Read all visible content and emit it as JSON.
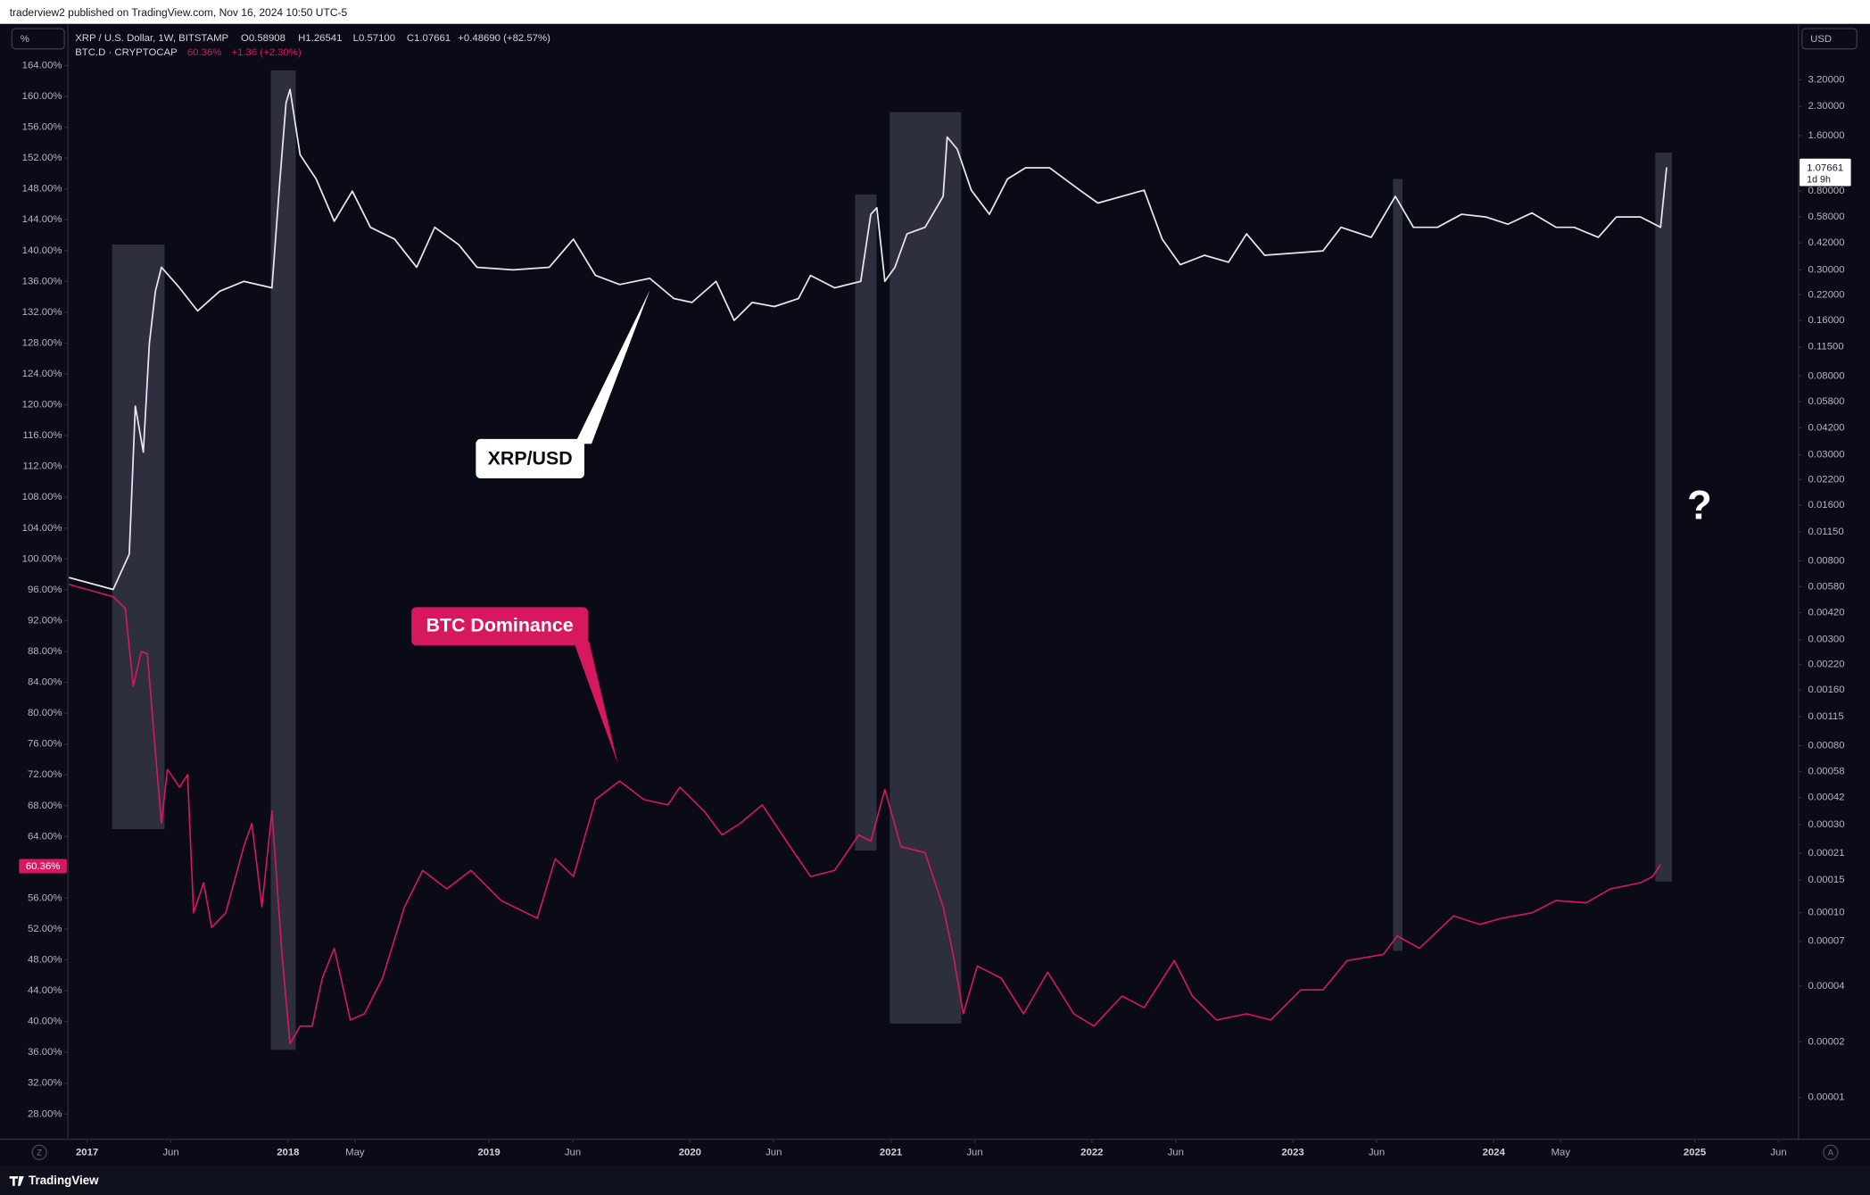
{
  "header": {
    "published": "traderview2 published on TradingView.com, Nov 16, 2024 10:50 UTC-5"
  },
  "chart_data": {
    "type": "line",
    "left_axis_unit": "%",
    "right_axis_unit": "USD",
    "legend": {
      "xrp": {
        "symbol": "XRP / U.S. Dollar, 1W, BITSTAMP",
        "open": "O0.58908",
        "high": "H1.26541",
        "low": "L0.57100",
        "close": "C1.07661",
        "change": "+0.48690 (+82.57%)"
      },
      "btc": {
        "symbol": "BTC.D · CRYPTOCAP",
        "change": "+1.36 (+2.30%)"
      }
    },
    "annotation": "?",
    "grid": false,
    "xlim": [
      2016.905,
      2025.516
    ],
    "xticks": [
      {
        "value": 2017,
        "label": "2017"
      },
      {
        "value": 2017.417,
        "label": "Jun"
      },
      {
        "value": 2018,
        "label": "2018"
      },
      {
        "value": 2018.333,
        "label": "May"
      },
      {
        "value": 2019,
        "label": "2019"
      },
      {
        "value": 2019.417,
        "label": "Jun"
      },
      {
        "value": 2020,
        "label": "2020"
      },
      {
        "value": 2020.417,
        "label": "Jun"
      },
      {
        "value": 2021,
        "label": "2021"
      },
      {
        "value": 2021.417,
        "label": "Jun"
      },
      {
        "value": 2022,
        "label": "2022"
      },
      {
        "value": 2022.417,
        "label": "Jun"
      },
      {
        "value": 2023,
        "label": "2023"
      },
      {
        "value": 2023.417,
        "label": "Jun"
      },
      {
        "value": 2024,
        "label": "2024"
      },
      {
        "value": 2024.333,
        "label": "May"
      },
      {
        "value": 2025,
        "label": "2025"
      },
      {
        "value": 2025.417,
        "label": "Jun"
      }
    ],
    "ylim": [
      25.5,
      169.1
    ],
    "yticks": [
      {
        "value": 28,
        "label": "28.00%"
      },
      {
        "value": 32,
        "label": "32.00%"
      },
      {
        "value": 36,
        "label": "36.00%"
      },
      {
        "value": 40,
        "label": "40.00%"
      },
      {
        "value": 44,
        "label": "44.00%"
      },
      {
        "value": 48,
        "label": "48.00%"
      },
      {
        "value": 52,
        "label": "52.00%"
      },
      {
        "value": 56,
        "label": "56.00%"
      },
      {
        "value": 64,
        "label": "64.00%"
      },
      {
        "value": 68,
        "label": "68.00%"
      },
      {
        "value": 72,
        "label": "72.00%"
      },
      {
        "value": 76,
        "label": "76.00%"
      },
      {
        "value": 80,
        "label": "80.00%"
      },
      {
        "value": 84,
        "label": "84.00%"
      },
      {
        "value": 88,
        "label": "88.00%"
      },
      {
        "value": 92,
        "label": "92.00%"
      },
      {
        "value": 96,
        "label": "96.00%"
      },
      {
        "value": 100,
        "label": "100.00%"
      },
      {
        "value": 104,
        "label": "104.00%"
      },
      {
        "value": 108,
        "label": "108.00%"
      },
      {
        "value": 112,
        "label": "112.00%"
      },
      {
        "value": 116,
        "label": "116.00%"
      },
      {
        "value": 120,
        "label": "120.00%"
      },
      {
        "value": 124,
        "label": "124.00%"
      },
      {
        "value": 128,
        "label": "128.00%"
      },
      {
        "value": 132,
        "label": "132.00%"
      },
      {
        "value": 136,
        "label": "136.00%"
      },
      {
        "value": 140,
        "label": "140.00%"
      },
      {
        "value": 144,
        "label": "144.00%"
      },
      {
        "value": 148,
        "label": "148.00%"
      },
      {
        "value": 152,
        "label": "152.00%"
      },
      {
        "value": 156,
        "label": "156.00%"
      },
      {
        "value": 160,
        "label": "160.00%"
      },
      {
        "value": 164,
        "label": "164.00%"
      }
    ],
    "y2_log": true,
    "y2lim": [
      6.4e-06,
      6.24
    ],
    "y2ticks": [
      {
        "value": 3.2,
        "label": "3.20000"
      },
      {
        "value": 2.3,
        "label": "2.30000"
      },
      {
        "value": 1.6,
        "label": "1.60000"
      },
      {
        "value": 0.8,
        "label": "0.80000"
      },
      {
        "value": 0.58,
        "label": "0.58000"
      },
      {
        "value": 0.42,
        "label": "0.42000"
      },
      {
        "value": 0.3,
        "label": "0.30000"
      },
      {
        "value": 0.22,
        "label": "0.22000"
      },
      {
        "value": 0.16,
        "label": "0.16000"
      },
      {
        "value": 0.115,
        "label": "0.11500"
      },
      {
        "value": 0.08,
        "label": "0.08000"
      },
      {
        "value": 0.058,
        "label": "0.05800"
      },
      {
        "value": 0.042,
        "label": "0.04200"
      },
      {
        "value": 0.03,
        "label": "0.03000"
      },
      {
        "value": 0.022,
        "label": "0.02200"
      },
      {
        "value": 0.016,
        "label": "0.01600"
      },
      {
        "value": 0.0115,
        "label": "0.01150"
      },
      {
        "value": 0.008,
        "label": "0.00800"
      },
      {
        "value": 0.0058,
        "label": "0.00580"
      },
      {
        "value": 0.0042,
        "label": "0.00420"
      },
      {
        "value": 0.003,
        "label": "0.00300"
      },
      {
        "value": 0.0022,
        "label": "0.00220"
      },
      {
        "value": 0.0016,
        "label": "0.00160"
      },
      {
        "value": 0.00115,
        "label": "0.00115"
      },
      {
        "value": 0.0008,
        "label": "0.00080"
      },
      {
        "value": 0.00058,
        "label": "0.00058"
      },
      {
        "value": 0.00042,
        "label": "0.00042"
      },
      {
        "value": 0.0003,
        "label": "0.00030"
      },
      {
        "value": 0.00021,
        "label": "0.00021"
      },
      {
        "value": 0.00015,
        "label": "0.00015"
      },
      {
        "value": 0.0001,
        "label": "0.00010"
      },
      {
        "value": 7e-05,
        "label": "0.00007"
      },
      {
        "value": 4e-05,
        "label": "0.00004"
      },
      {
        "value": 2e-05,
        "label": "0.00002"
      },
      {
        "value": 1e-05,
        "label": "0.00001"
      }
    ],
    "series": [
      {
        "name": "BTC Dominance",
        "color": "#d6195f",
        "axis": "y",
        "last_label": "60.36%",
        "x": [
          2016.91,
          2017.13,
          2017.19,
          2017.23,
          2017.27,
          2017.3,
          2017.34,
          2017.37,
          2017.4,
          2017.46,
          2017.5,
          2017.53,
          2017.58,
          2017.62,
          2017.69,
          2017.78,
          2017.82,
          2017.87,
          2017.92,
          2017.97,
          2018.01,
          2018.06,
          2018.12,
          2018.17,
          2018.23,
          2018.31,
          2018.38,
          2018.47,
          2018.58,
          2018.67,
          2018.79,
          2018.91,
          2019.06,
          2019.24,
          2019.33,
          2019.42,
          2019.53,
          2019.65,
          2019.77,
          2019.89,
          2019.95,
          2020.07,
          2020.16,
          2020.25,
          2020.36,
          2020.48,
          2020.6,
          2020.72,
          2020.84,
          2020.9,
          2020.97,
          2021.05,
          2021.17,
          2021.26,
          2021.31,
          2021.36,
          2021.43,
          2021.55,
          2021.66,
          2021.78,
          2021.91,
          2022.01,
          2022.15,
          2022.26,
          2022.41,
          2022.5,
          2022.62,
          2022.77,
          2022.89,
          2023.04,
          2023.15,
          2023.27,
          2023.45,
          2023.52,
          2023.63,
          2023.8,
          2023.93,
          2024.04,
          2024.19,
          2024.31,
          2024.46,
          2024.58,
          2024.73,
          2024.79,
          2024.83
        ],
        "values": [
          96.7,
          95.1,
          93.6,
          83.5,
          88,
          87.7,
          75,
          65.7,
          72.7,
          70.4,
          72,
          54.1,
          58,
          52.2,
          54.1,
          62.7,
          65.7,
          54.9,
          67.3,
          48.7,
          37.1,
          39.4,
          39.4,
          45.6,
          49.5,
          40.2,
          41,
          45.6,
          54.9,
          59.6,
          57.2,
          59.6,
          55.7,
          53.4,
          61.1,
          58.8,
          68.8,
          71.2,
          68.8,
          68.1,
          70.4,
          67.3,
          64.2,
          65.7,
          68.1,
          63.4,
          58.8,
          59.6,
          64.2,
          63.4,
          70.1,
          62.7,
          61.9,
          54.9,
          48.7,
          41,
          47.2,
          45.6,
          41,
          46.4,
          41,
          39.4,
          43.3,
          41.8,
          47.9,
          43.3,
          40.2,
          41,
          40.2,
          44.1,
          44.1,
          47.9,
          48.7,
          51.1,
          49.5,
          53.7,
          52.6,
          53.4,
          54.1,
          55.7,
          55.4,
          57.2,
          58,
          58.8,
          60.36
        ]
      },
      {
        "name": "XRP/USD",
        "color": "#e8e8ec",
        "axis": "y2",
        "last_label": "1.07661",
        "countdown": "1d 9h",
        "x": [
          2016.91,
          2017.13,
          2017.21,
          2017.24,
          2017.28,
          2017.31,
          2017.34,
          2017.37,
          2017.46,
          2017.55,
          2017.66,
          2017.78,
          2017.92,
          2017.96,
          2017.99,
          2018.01,
          2018.06,
          2018.14,
          2018.23,
          2018.32,
          2018.41,
          2018.53,
          2018.64,
          2018.73,
          2018.85,
          2018.94,
          2019.12,
          2019.3,
          2019.42,
          2019.53,
          2019.65,
          2019.8,
          2019.92,
          2020.01,
          2020.13,
          2020.22,
          2020.31,
          2020.42,
          2020.54,
          2020.6,
          2020.72,
          2020.85,
          2020.9,
          2020.93,
          2020.97,
          2021.02,
          2021.08,
          2021.17,
          2021.26,
          2021.28,
          2021.33,
          2021.4,
          2021.49,
          2021.58,
          2021.67,
          2021.79,
          2021.94,
          2022.03,
          2022.15,
          2022.26,
          2022.35,
          2022.44,
          2022.56,
          2022.68,
          2022.77,
          2022.86,
          2023.01,
          2023.15,
          2023.24,
          2023.39,
          2023.51,
          2023.6,
          2023.72,
          2023.84,
          2023.96,
          2024.07,
          2024.19,
          2024.31,
          2024.4,
          2024.52,
          2024.61,
          2024.73,
          2024.83,
          2024.86
        ],
        "values": [
          0.0065,
          0.0056,
          0.0087,
          0.055,
          0.031,
          0.12,
          0.23,
          0.31,
          0.24,
          0.18,
          0.23,
          0.26,
          0.24,
          0.93,
          2.4,
          2.84,
          1.26,
          0.93,
          0.55,
          0.8,
          0.51,
          0.44,
          0.31,
          0.51,
          0.41,
          0.31,
          0.3,
          0.31,
          0.44,
          0.28,
          0.25,
          0.27,
          0.21,
          0.2,
          0.26,
          0.16,
          0.2,
          0.19,
          0.21,
          0.28,
          0.24,
          0.26,
          0.6,
          0.65,
          0.26,
          0.31,
          0.47,
          0.51,
          0.75,
          1.57,
          1.35,
          0.81,
          0.6,
          0.93,
          1.07,
          1.07,
          0.81,
          0.69,
          0.75,
          0.81,
          0.44,
          0.32,
          0.36,
          0.33,
          0.47,
          0.36,
          0.37,
          0.38,
          0.51,
          0.45,
          0.75,
          0.51,
          0.51,
          0.6,
          0.58,
          0.53,
          0.61,
          0.51,
          0.51,
          0.45,
          0.58,
          0.58,
          0.51,
          1.07661
        ]
      }
    ]
  },
  "footer": {
    "brand": "TradingView",
    "left_button": "Z",
    "right_button": "A"
  }
}
